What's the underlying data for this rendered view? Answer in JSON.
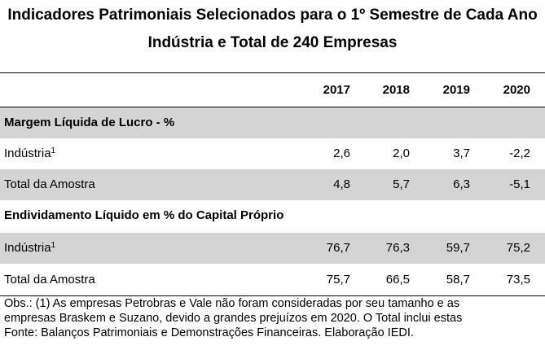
{
  "title": {
    "line1": "Indicadores Patrimoniais Selecionados para o 1º Semestre de Cada Ano",
    "line2": "Indústria e Total de 240 Empresas"
  },
  "table": {
    "years": [
      "2017",
      "2018",
      "2019",
      "2020"
    ],
    "sections": [
      {
        "title": "Margem Líquida de Lucro - %",
        "rows": [
          {
            "label": "Indústria",
            "sup": "1",
            "values": [
              "2,6",
              "2,0",
              "3,7",
              "-2,2"
            ]
          },
          {
            "label": "Total da Amostra",
            "sup": "",
            "values": [
              "4,8",
              "5,7",
              "6,3",
              "-5,1"
            ]
          }
        ]
      },
      {
        "title": "Endividamento Líquido em % do Capital Próprio",
        "rows": [
          {
            "label": "Indústria",
            "sup": "1",
            "values": [
              "76,7",
              "76,3",
              "59,7",
              "75,2"
            ]
          },
          {
            "label": "Total da Amostra",
            "sup": "",
            "values": [
              "75,7",
              "66,5",
              "58,7",
              "73,5"
            ]
          }
        ]
      }
    ]
  },
  "notes": {
    "line1": "Obs.: (1) As empresas Petrobras e Vale não foram consideradas por seu tamanho e as",
    "line2": "empresas Braskem e Suzano, devido a grandes prejuízos em 2020. O Total inclui estas",
    "line3": "Fonte: Balanços Patrimoniais e Demonstrações Financeiras. Elaboração IEDI."
  }
}
